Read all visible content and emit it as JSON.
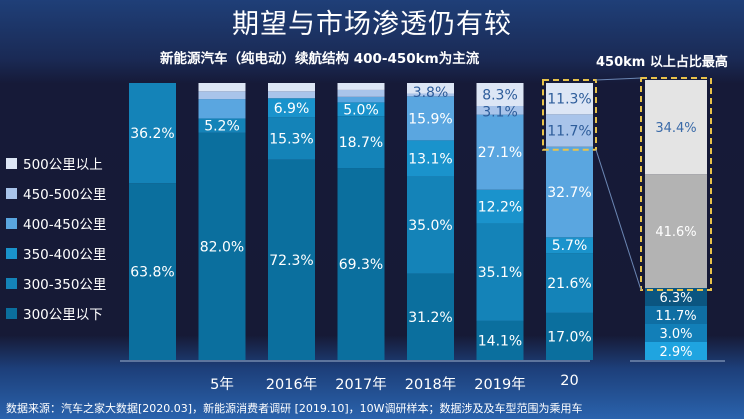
{
  "header": {
    "title": "期望与市场渗透仍有较",
    "subtitle": "新能源汽车（纯电动）续航结构 400-450km为主流",
    "right_subtitle": "450km 以上占比最高"
  },
  "footer": {
    "source": "数据来源：汽车之家大数据[2020.03]，新能源消费者调研 [2019.10]，10W调研样本；数据涉及及车型范围为乘用车"
  },
  "chart_data": {
    "type": "bar",
    "stacked": true,
    "title": "新能源汽车（纯电动）续航结构 400-450km为主流",
    "xlabel": "",
    "ylabel": "",
    "ylim": [
      0,
      100
    ],
    "legend_position": "left",
    "categories": [
      "",
      "5年",
      "2016年",
      "2017年",
      "2018年",
      "2019年",
      "20"
    ],
    "series": [
      {
        "name": "300公里以下",
        "color": "#0b6f9e",
        "values": [
          63.8,
          82.0,
          72.3,
          69.3,
          31.2,
          14.1,
          17.0
        ]
      },
      {
        "name": "300-350公里",
        "color": "#1483b8",
        "values": [
          36.2,
          5.2,
          15.3,
          18.7,
          35.0,
          35.1,
          21.6
        ]
      },
      {
        "name": "350-400公里",
        "color": "#1a93cc",
        "values": [
          0,
          0,
          6.9,
          5.0,
          13.1,
          12.2,
          5.7
        ]
      },
      {
        "name": "400-450公里",
        "color": "#5aa6e0",
        "values": [
          0,
          7.0,
          0,
          2.0,
          15.9,
          27.1,
          32.7
        ]
      },
      {
        "name": "450-500公里",
        "color": "#a9c4ea",
        "values": [
          0,
          2.8,
          2.5,
          2.5,
          1.0,
          3.1,
          11.7
        ]
      },
      {
        "name": "500公里以上",
        "color": "#dde6f5",
        "values": [
          0,
          3.0,
          3.0,
          2.5,
          3.8,
          8.3,
          11.3
        ]
      }
    ],
    "data_labels": [
      [
        "63.8%",
        "36.2%",
        "",
        "",
        "",
        ""
      ],
      [
        "82.0%",
        "5.2%",
        "",
        "",
        "",
        ""
      ],
      [
        "72.3%",
        "15.3%",
        "6.9%",
        "",
        "",
        ""
      ],
      [
        "69.3%",
        "18.7%",
        "5.0%",
        "",
        "",
        ""
      ],
      [
        "31.2%",
        "35.0%",
        "13.1%",
        "15.9%",
        "",
        "3.8%"
      ],
      [
        "14.1%",
        "35.1%",
        "12.2%",
        "27.1%",
        "3.1%",
        "8.3%"
      ],
      [
        "17.0%",
        "21.6%",
        "5.7%",
        "32.7%",
        "11.7%",
        "11.3%"
      ]
    ],
    "highlight_bar": {
      "title": "450km 以上占比最高",
      "segments": [
        {
          "label": "2.9%",
          "value": 2.9,
          "color": "#1fa4e0"
        },
        {
          "label": "3.0%",
          "value": 3.0,
          "color": "#127fb8"
        },
        {
          "label": "11.7%",
          "value": 11.7,
          "color": "#0f6ea3"
        },
        {
          "label": "6.3%",
          "value": 6.3,
          "color": "#0b5580"
        },
        {
          "label": "41.6%",
          "value": 41.6,
          "color": "#b3b3b3"
        },
        {
          "label": "34.4%",
          "value": 34.4,
          "color": "#e4e4e4"
        }
      ]
    }
  }
}
